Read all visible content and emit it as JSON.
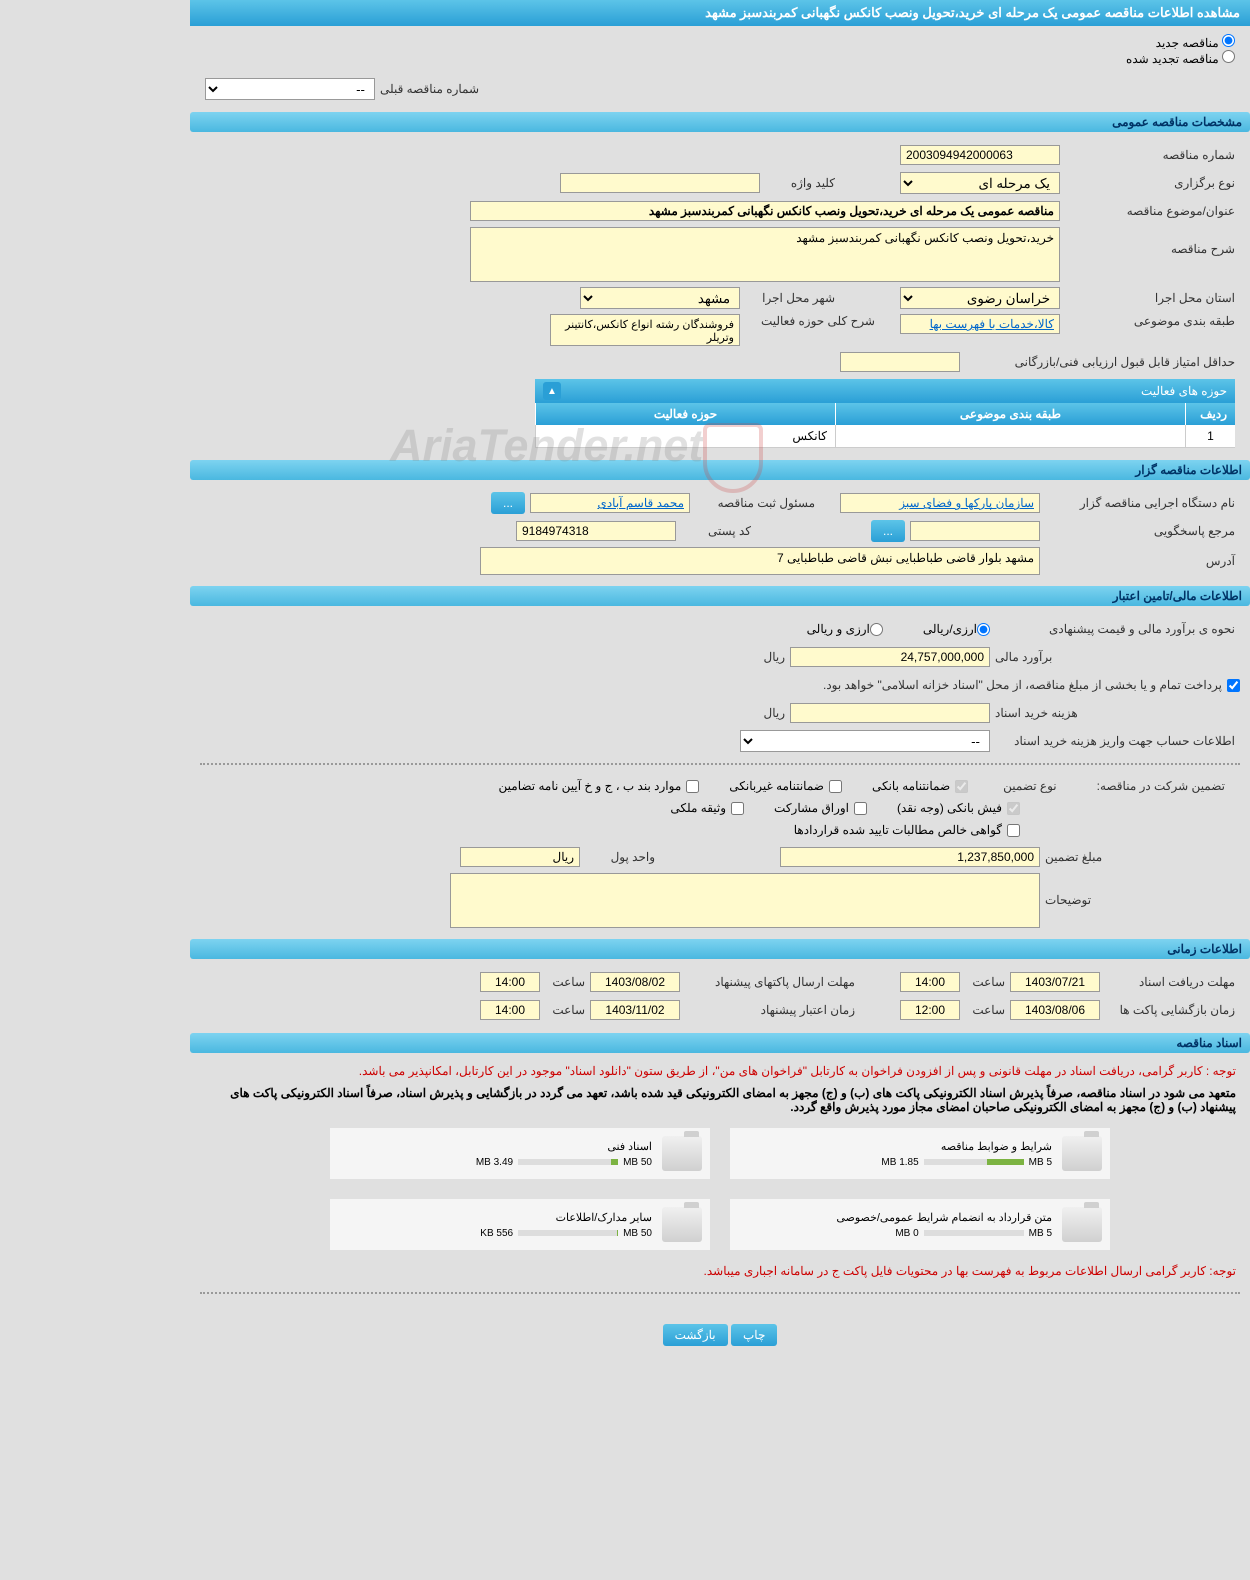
{
  "header": {
    "title": "مشاهده اطلاعات مناقصه عمومی یک مرحله ای خرید،تحویل ونصب کانکس نگهبانی کمربندسبز مشهد"
  },
  "radio": {
    "new": "مناقصه جدید",
    "renewed": "مناقصه تجدید شده",
    "prev_label": "شماره مناقصه قبلی",
    "prev_value": "--"
  },
  "sections": {
    "general": "مشخصات مناقصه عمومی",
    "organizer": "اطلاعات مناقصه گزار",
    "financial": "اطلاعات مالی/تامین اعتبار",
    "time": "اطلاعات زمانی",
    "docs": "اسناد مناقصه"
  },
  "general": {
    "number_label": "شماره مناقصه",
    "number": "2003094942000063",
    "type_label": "نوع برگزاری",
    "type": "یک مرحله ای",
    "keyword_label": "کلید واژه",
    "keyword": "",
    "title_label": "عنوان/موضوع مناقصه",
    "title": "مناقصه عمومی یک مرحله ای خرید،تحویل ونصب کانکس نگهبانی کمربندسبز مشهد",
    "desc_label": "شرح مناقصه",
    "desc": "خرید،تحویل ونصب کانکس نگهبانی کمربندسبز مشهد",
    "province_label": "استان محل اجرا",
    "province": "خراسان رضوی",
    "city_label": "شهر محل اجرا",
    "city": "مشهد",
    "category_label": "طبقه بندی موضوعی",
    "category": "کالا،خدمات با فهرست بها",
    "activity_label": "شرح کلی حوزه فعالیت",
    "activity": "فروشندگان رشته انواع کانکس،کانتینر وتریلر",
    "min_score_label": "حداقل امتیاز قابل قبول ارزیابی فنی/بازرگانی",
    "min_score": "",
    "activity_table": {
      "title": "حوزه های فعالیت",
      "col_row": "ردیف",
      "col_category": "طبقه بندی موضوعی",
      "col_activity": "حوزه فعالیت",
      "row_num": "1",
      "row_activity": "کانکس"
    }
  },
  "organizer": {
    "agency_label": "نام دستگاه اجرایی مناقصه گزار",
    "agency": "سازمان پارکها و فضای سبز",
    "responsible_label": "مسئول ثبت مناقصه",
    "responsible": "محمد قاسم آبادی",
    "more": "...",
    "contact_label": "مرجع پاسخگویی",
    "contact": "",
    "contact_btn": "...",
    "postal_label": "کد پستی",
    "postal": "9184974318",
    "address_label": "آدرس",
    "address": "مشهد بلوار قاضی طباطبایی  نبش قاضی طباطبایی 7"
  },
  "financial": {
    "estimate_method_label": "نحوه ی برآورد مالی و قیمت پیشنهادی",
    "currency_rial": "ارزی/ریالی",
    "currency_both": "ارزی و ریالی",
    "estimate_label": "برآورد مالی",
    "estimate": "24,757,000,000",
    "rial": "ریال",
    "treasury_note": "پرداخت تمام و یا بخشی از مبلغ مناقصه، از محل \"اسناد خزانه اسلامی\" خواهد بود.",
    "doc_cost_label": "هزینه خرید اسناد",
    "doc_cost": "",
    "account_label": "اطلاعات حساب جهت واریز هزینه خرید اسناد",
    "account": "--",
    "guarantee_label": "تضمین شرکت در مناقصه:",
    "guarantee_type_label": "نوع تضمین",
    "cb_bank": "ضمانتنامه بانکی",
    "cb_nonbank": "ضمانتنامه غیربانکی",
    "cb_regulation": "موارد بند ب ، ج و خ آیین نامه تضامین",
    "cb_receipt": "فیش بانکی (وجه نقد)",
    "cb_bonds": "اوراق مشارکت",
    "cb_property": "وثیقه ملکی",
    "cb_certificate": "گواهی خالص مطالبات تایید شده قراردادها",
    "amount_label": "مبلغ تضمین",
    "amount": "1,237,850,000",
    "unit_label": "واحد پول",
    "unit": "ریال",
    "notes_label": "توضیحات",
    "notes": ""
  },
  "time": {
    "doc_deadline_label": "مهلت دریافت اسناد",
    "doc_deadline_date": "1403/07/21",
    "doc_deadline_time_label": "ساعت",
    "doc_deadline_time": "14:00",
    "packet_deadline_label": "مهلت ارسال پاکتهای پیشنهاد",
    "packet_deadline_date": "1403/08/02",
    "packet_deadline_time": "14:00",
    "opening_label": "زمان بازگشایی پاکت ها",
    "opening_date": "1403/08/06",
    "opening_time": "12:00",
    "validity_label": "زمان اعتبار پیشنهاد",
    "validity_date": "1403/11/02",
    "validity_time": "14:00"
  },
  "docs": {
    "note1": "توجه : کاربر گرامی، دریافت اسناد در مهلت قانونی و پس از افزودن فراخوان به کارتابل \"فراخوان های من\"، از طریق ستون \"دانلود اسناد\" موجود در این کارتابل، امکانپذیر می باشد.",
    "note2": "متعهد می شود در اسناد مناقصه، صرفاً پذیرش اسناد الکترونیکی پاکت های (ب) و (ج) مجهز به امضای الکترونیکی قید شده باشد، تعهد می گردد در بازگشایی و پذیرش اسناد، صرفاً اسناد الکترونیکی پاکت های پیشنهاد (ب) و (ج) مجهز به امضای الکترونیکی صاحبان امضای مجاز مورد پذیرش واقع گردد.",
    "note3": "توجه: کاربر گرامی ارسال اطلاعات مربوط به فهرست بها در محتویات فایل پاکت ج در سامانه اجباری میباشد.",
    "items": [
      {
        "title": "شرایط و ضوابط مناقصه",
        "used": "1.85 MB",
        "total": "5 MB",
        "pct": 37
      },
      {
        "title": "اسناد فنی",
        "used": "3.49 MB",
        "total": "50 MB",
        "pct": 7
      },
      {
        "title": "متن قرارداد به انضمام شرایط عمومی/خصوصی",
        "used": "0 MB",
        "total": "5 MB",
        "pct": 0
      },
      {
        "title": "سایر مدارک/اطلاعات",
        "used": "556 KB",
        "total": "50 MB",
        "pct": 1
      }
    ]
  },
  "footer": {
    "print": "چاپ",
    "back": "بازگشت"
  },
  "watermark": "AriaTender.net"
}
